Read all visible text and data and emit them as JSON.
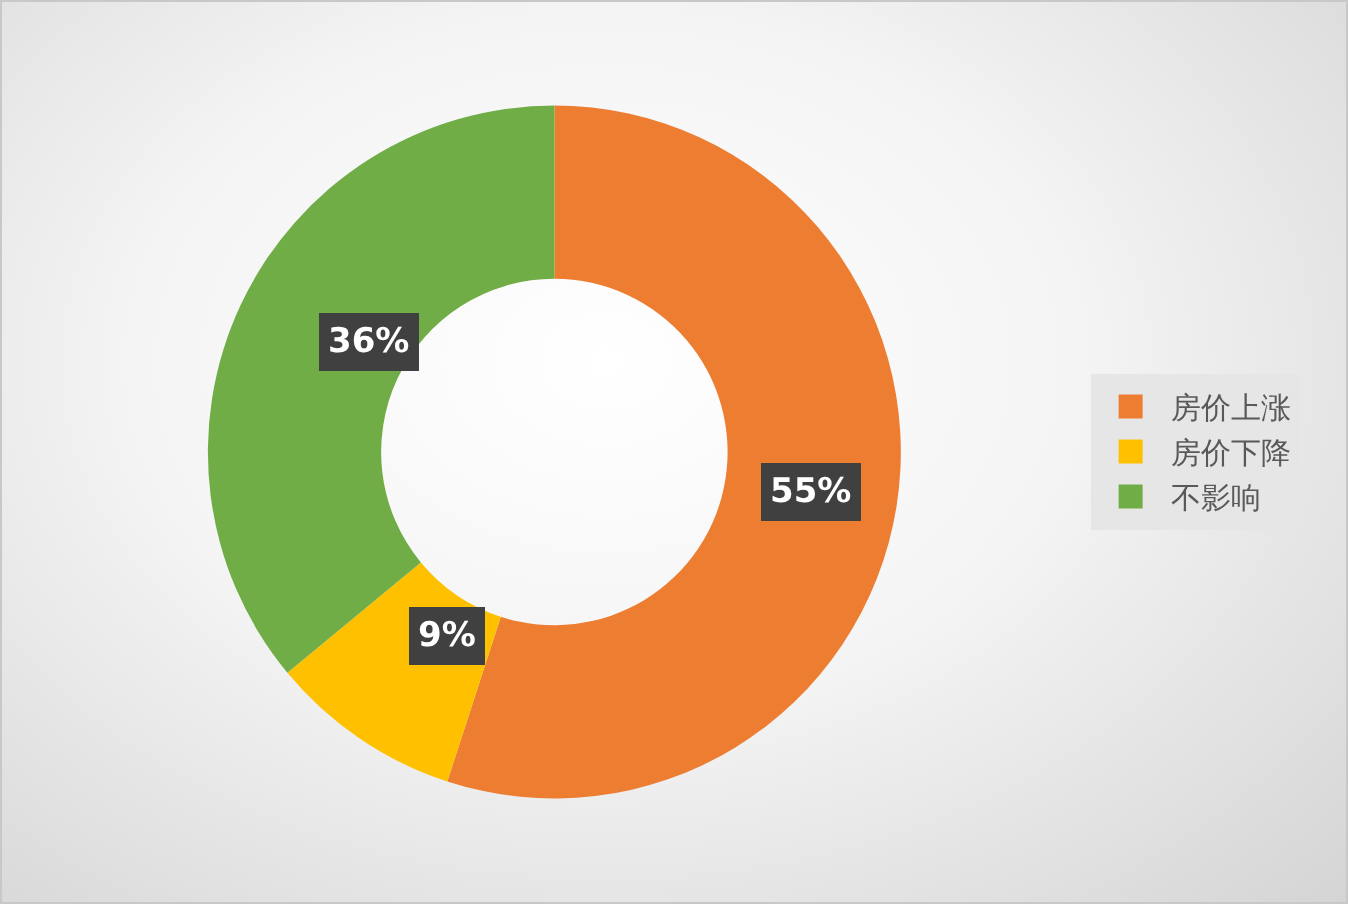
{
  "chart_data": {
    "type": "donut",
    "categories": [
      "房价上涨",
      "房价下降",
      "不影响"
    ],
    "values": [
      55,
      9,
      36
    ],
    "colors": [
      "#ed7d31",
      "#ffc000",
      "#70ad47"
    ],
    "value_labels": [
      "55%",
      "9%",
      "36%"
    ],
    "legend": "right"
  }
}
